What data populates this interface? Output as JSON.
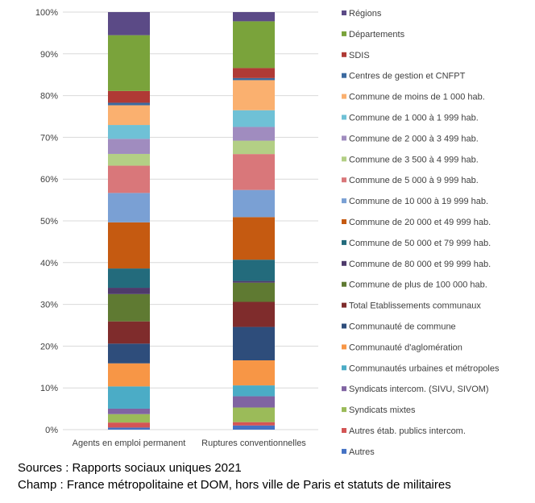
{
  "chart_data": {
    "type": "bar",
    "stacked": true,
    "percent": true,
    "categories": [
      "Agents en emploi permanent",
      "Ruptures conventionnelles"
    ],
    "ylim": [
      0,
      100
    ],
    "yticks": [
      0,
      10,
      20,
      30,
      40,
      50,
      60,
      70,
      80,
      90,
      100
    ],
    "ytick_labels": [
      "0%",
      "10%",
      "20%",
      "30%",
      "40%",
      "50%",
      "60%",
      "70%",
      "80%",
      "90%",
      "100%"
    ],
    "grid": true,
    "legend_position": "right",
    "series": [
      {
        "name": "Autres",
        "color": "#4472c4",
        "values": [
          0.5,
          1.0
        ]
      },
      {
        "name": "Autres étab. publics intercom.",
        "color": "#d35555",
        "values": [
          1.2,
          0.8
        ]
      },
      {
        "name": "Syndicats mixtes",
        "color": "#9bbb59",
        "values": [
          2.0,
          3.5
        ]
      },
      {
        "name": "Syndicats intercom. (SIVU, SIVOM)",
        "color": "#8064a2",
        "values": [
          1.3,
          2.7
        ]
      },
      {
        "name": "Communautés urbaines et métropoles",
        "color": "#4bacc6",
        "values": [
          5.3,
          2.6
        ]
      },
      {
        "name": "Communauté d'aglomération",
        "color": "#f79646",
        "values": [
          5.5,
          6.0
        ]
      },
      {
        "name": "Communauté de commune",
        "color": "#2e4d7b",
        "values": [
          4.7,
          8.0
        ]
      },
      {
        "name": "Total Etablissements communaux",
        "color": "#7f2c2c",
        "values": [
          5.3,
          6.0
        ]
      },
      {
        "name": "Commune de plus de 100 000 hab.",
        "color": "#5f7a32",
        "values": [
          6.5,
          4.6
        ]
      },
      {
        "name": "Commune de 80 000 et 99 999 hab.",
        "color": "#4e3a6b",
        "values": [
          1.5,
          0.4
        ]
      },
      {
        "name": "Commune de 50 000 et 79 999 hab.",
        "color": "#236b7c",
        "values": [
          4.6,
          5.1
        ]
      },
      {
        "name": "Commune de 20 000 et 49 999 hab.",
        "color": "#c55a11",
        "values": [
          11.0,
          10.2
        ]
      },
      {
        "name": "Commune de 10 000 à 19 999 hab.",
        "color": "#7aa0d4",
        "values": [
          7.0,
          6.5
        ]
      },
      {
        "name": "Commune de 5 000 à 9 999 hab.",
        "color": "#d9777a",
        "values": [
          6.5,
          8.6
        ]
      },
      {
        "name": "Commune de 3 500 à 4 999 hab.",
        "color": "#b3cf85",
        "values": [
          2.8,
          3.2
        ]
      },
      {
        "name": "Commune de 2 000 à 3 499 hab.",
        "color": "#a08cbf",
        "values": [
          3.6,
          3.3
        ]
      },
      {
        "name": "Commune de 1 000 à  1 999 hab.",
        "color": "#6fc1d6",
        "values": [
          3.3,
          4.0
        ]
      },
      {
        "name": "Commune de moins de 1 000 hab.",
        "color": "#fab06f",
        "values": [
          4.7,
          7.2
        ]
      },
      {
        "name": "Centres de gestion et CNFPT",
        "color": "#3b6aa0",
        "values": [
          0.6,
          0.5
        ]
      },
      {
        "name": "SDIS",
        "color": "#b03a35",
        "values": [
          2.8,
          2.4
        ]
      },
      {
        "name": "Départements",
        "color": "#7aa33b",
        "values": [
          13.3,
          11.2
        ]
      },
      {
        "name": "Régions",
        "color": "#5b4a86",
        "values": [
          5.5,
          2.2
        ]
      }
    ]
  },
  "footer": {
    "sources": "Sources : Rapports sociaux uniques 2021",
    "champ": "Champ : France métropolitaine et DOM, hors ville de Paris et statuts de militaires"
  }
}
